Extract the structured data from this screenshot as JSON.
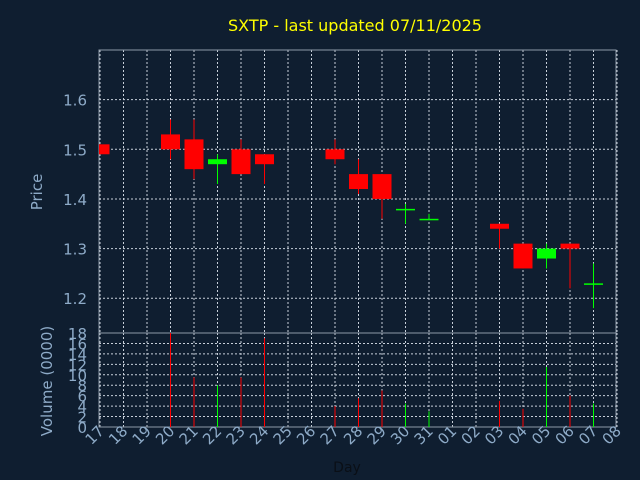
{
  "colors": {
    "background": "#0f1e30",
    "title": "#ffff00",
    "axis_text": "#8eabc8",
    "frame": "#8e9aa8",
    "grid": "#c8d0da",
    "up": "#00ff00",
    "down": "#ff0000"
  },
  "chart_data": [
    {
      "type": "candlestick",
      "title": "SXTP - last updated 07/11/2025",
      "ylabel": "Price",
      "ylim": [
        1.13,
        1.7
      ],
      "yticks": [
        1.2,
        1.3,
        1.4,
        1.5,
        1.6
      ],
      "ytick_labels": [
        "1.2",
        "1.3",
        "1.4",
        "1.5",
        "1.6"
      ],
      "grid": true,
      "categories": [
        "17",
        "18",
        "19",
        "20",
        "21",
        "22",
        "23",
        "24",
        "25",
        "26",
        "27",
        "28",
        "29",
        "30",
        "31",
        "01",
        "02",
        "03",
        "04",
        "05",
        "06",
        "07",
        "08"
      ],
      "candles": [
        {
          "day": "17",
          "open": 1.51,
          "high": 1.51,
          "low": 1.49,
          "close": 1.49
        },
        {
          "day": "20",
          "open": 1.53,
          "high": 1.56,
          "low": 1.48,
          "close": 1.5
        },
        {
          "day": "21",
          "open": 1.52,
          "high": 1.56,
          "low": 1.44,
          "close": 1.46
        },
        {
          "day": "22",
          "open": 1.47,
          "high": 1.49,
          "low": 1.43,
          "close": 1.48
        },
        {
          "day": "23",
          "open": 1.5,
          "high": 1.52,
          "low": 1.45,
          "close": 1.45
        },
        {
          "day": "24",
          "open": 1.49,
          "high": 1.49,
          "low": 1.43,
          "close": 1.47
        },
        {
          "day": "27",
          "open": 1.5,
          "high": 1.52,
          "low": 1.47,
          "close": 1.48
        },
        {
          "day": "28",
          "open": 1.45,
          "high": 1.48,
          "low": 1.41,
          "close": 1.42
        },
        {
          "day": "29",
          "open": 1.45,
          "high": 1.45,
          "low": 1.36,
          "close": 1.4
        },
        {
          "day": "30",
          "open": 1.38,
          "high": 1.39,
          "low": 1.35,
          "close": 1.38
        },
        {
          "day": "31",
          "open": 1.36,
          "high": 1.37,
          "low": 1.36,
          "close": 1.36
        },
        {
          "day": "03",
          "open": 1.35,
          "high": 1.35,
          "low": 1.3,
          "close": 1.34
        },
        {
          "day": "04",
          "open": 1.31,
          "high": 1.31,
          "low": 1.26,
          "close": 1.26
        },
        {
          "day": "05",
          "open": 1.28,
          "high": 1.31,
          "low": 1.26,
          "close": 1.3
        },
        {
          "day": "06",
          "open": 1.31,
          "high": 1.31,
          "low": 1.22,
          "close": 1.3
        },
        {
          "day": "07",
          "open": 1.23,
          "high": 1.27,
          "low": 1.18,
          "close": 1.23
        }
      ]
    },
    {
      "type": "bar",
      "ylabel": "Volume (0000)",
      "xlabel": "Day",
      "ylim": [
        0,
        18
      ],
      "yticks": [
        0,
        2,
        4,
        6,
        8,
        10,
        12,
        14,
        16,
        18
      ],
      "ytick_labels": [
        "0",
        "2",
        "4",
        "6",
        "8",
        "10",
        "12",
        "14",
        "16",
        "18"
      ],
      "grid": true,
      "categories": [
        "17",
        "18",
        "19",
        "20",
        "21",
        "22",
        "23",
        "24",
        "25",
        "26",
        "27",
        "28",
        "29",
        "30",
        "31",
        "01",
        "02",
        "03",
        "04",
        "05",
        "06",
        "07",
        "08"
      ],
      "bars": [
        {
          "day": "20",
          "value": 18,
          "direction": "down"
        },
        {
          "day": "21",
          "value": 9.5,
          "direction": "down"
        },
        {
          "day": "22",
          "value": 8,
          "direction": "up"
        },
        {
          "day": "23",
          "value": 9.5,
          "direction": "down"
        },
        {
          "day": "24",
          "value": 17,
          "direction": "down"
        },
        {
          "day": "27",
          "value": 4,
          "direction": "down"
        },
        {
          "day": "28",
          "value": 5.5,
          "direction": "down"
        },
        {
          "day": "29",
          "value": 7,
          "direction": "down"
        },
        {
          "day": "30",
          "value": 4.5,
          "direction": "up"
        },
        {
          "day": "31",
          "value": 3,
          "direction": "up"
        },
        {
          "day": "03",
          "value": 5,
          "direction": "down"
        },
        {
          "day": "04",
          "value": 3.5,
          "direction": "down"
        },
        {
          "day": "05",
          "value": 11.5,
          "direction": "up"
        },
        {
          "day": "06",
          "value": 6,
          "direction": "down"
        },
        {
          "day": "07",
          "value": 4.5,
          "direction": "up"
        }
      ]
    }
  ]
}
